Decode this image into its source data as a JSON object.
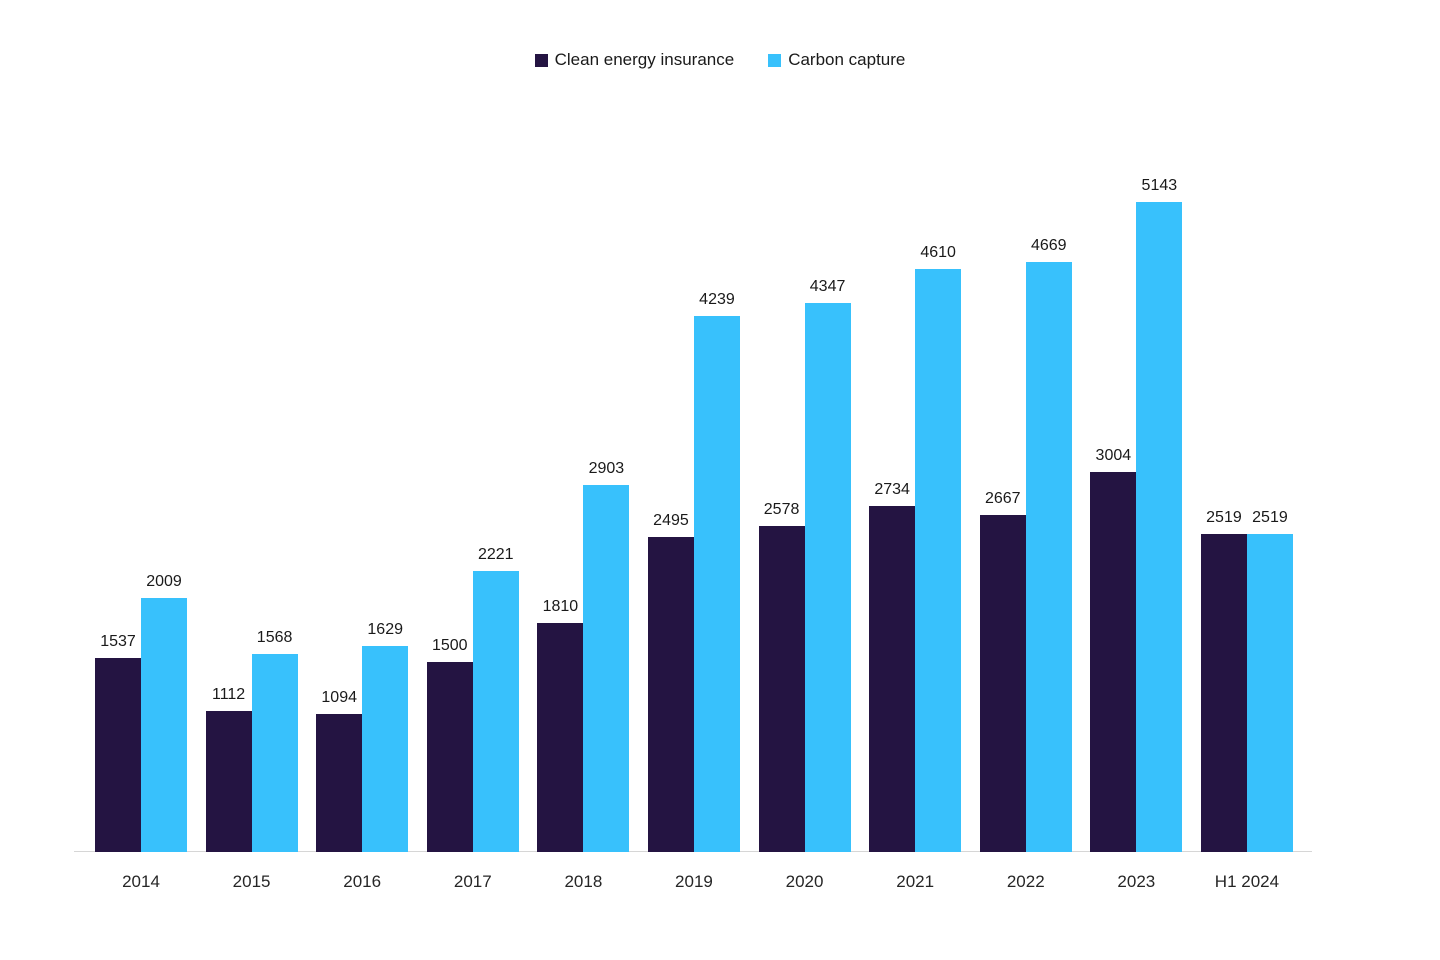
{
  "chart_data": {
    "type": "bar",
    "title": "",
    "xlabel": "",
    "ylabel": "",
    "categories": [
      "2014",
      "2015",
      "2016",
      "2017",
      "2018",
      "2019",
      "2020",
      "2021",
      "2022",
      "2023",
      "H1 2024"
    ],
    "series": [
      {
        "name": "Clean energy insurance",
        "color": "#241442",
        "values": [
          1537,
          1112,
          1094,
          1500,
          1810,
          2495,
          2578,
          2734,
          2667,
          3004,
          2519
        ]
      },
      {
        "name": "Carbon capture",
        "color": "#38c1fc",
        "values": [
          2009,
          1568,
          1629,
          2221,
          2903,
          4239,
          4347,
          4610,
          4669,
          5143,
          2519
        ]
      }
    ],
    "ylim": [
      0,
      5500
    ],
    "grid": false,
    "y_axis_visible": false,
    "legend_position": "top-center",
    "data_labels": true
  },
  "colors": {
    "background": "#ffffff",
    "axis_line": "#d6d6d6",
    "label_text": "#1a1a1a"
  }
}
